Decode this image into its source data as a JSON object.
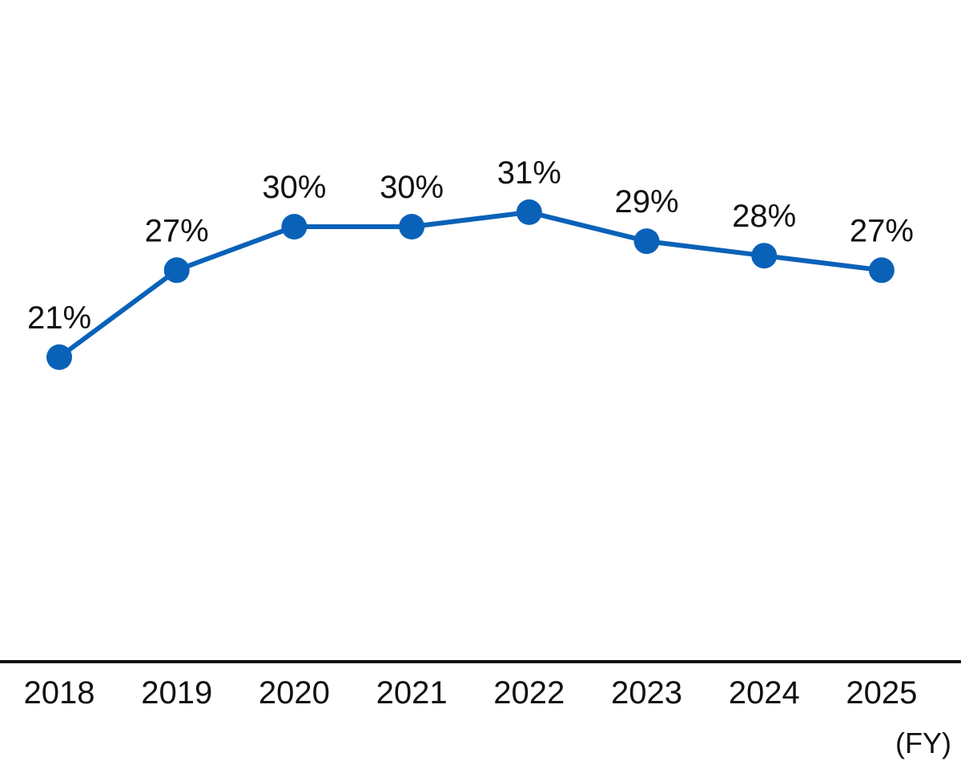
{
  "chart_data": {
    "type": "line",
    "title": "",
    "xlabel": "",
    "ylabel": "",
    "x_unit_label": "(FY)",
    "categories": [
      "2018",
      "2019",
      "2020",
      "2021",
      "2022",
      "2023",
      "2024",
      "2025"
    ],
    "series": [
      {
        "values": [
          21,
          27,
          30,
          30,
          31,
          29,
          28,
          27
        ],
        "labels": [
          "21%",
          "27%",
          "30%",
          "30%",
          "31%",
          "29%",
          "28%",
          "27%"
        ],
        "color": "#0a62b8",
        "marker": "circle"
      }
    ],
    "ylim": [
      0,
      42
    ],
    "grid": false,
    "legend": "none",
    "axis_color": "#111111"
  }
}
